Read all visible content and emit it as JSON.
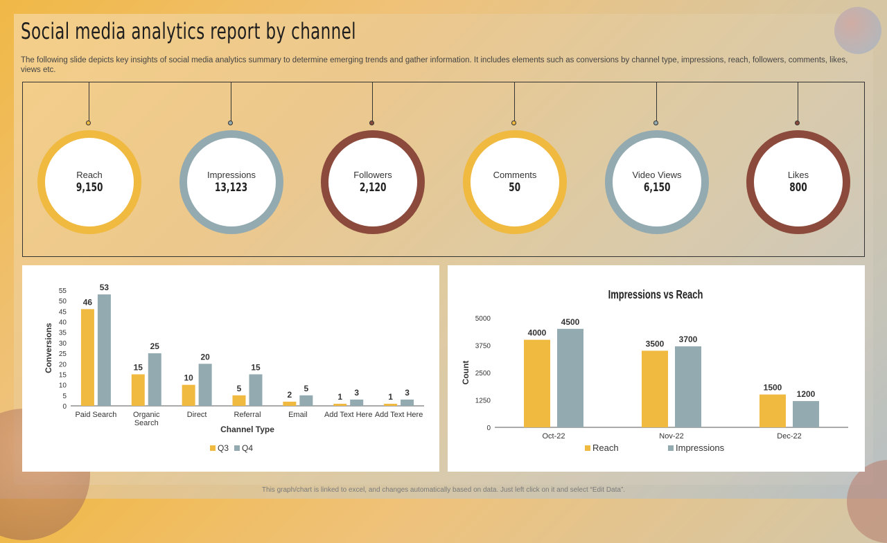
{
  "slide": {
    "title": "Social media analytics report by channel",
    "subtitle": "The following slide depicts key insights of social media analytics summary to determine emerging trends and gather information. It includes elements such as conversions by channel type,  impressions, reach, followers, comments, likes, views etc.",
    "footer": "This graph/chart is linked to excel, and changes automatically based on data. Just left click on it and select “Edit Data”."
  },
  "kpis": [
    {
      "label": "Reach",
      "value": "9,150",
      "color": "#f0b940"
    },
    {
      "label": "Impressions",
      "value": "13,123",
      "color": "#93aab0"
    },
    {
      "label": "Followers",
      "value": "2,120",
      "color": "#8b4a3c"
    },
    {
      "label": "Comments",
      "value": "50",
      "color": "#f0b940"
    },
    {
      "label": "Video Views",
      "value": "6,150",
      "color": "#93aab0"
    },
    {
      "label": "Likes",
      "value": "800",
      "color": "#8b4a3c"
    }
  ],
  "colors": {
    "gold": "#f0b940",
    "steel": "#93aab0",
    "brown": "#8b4a3c"
  },
  "chart_data": [
    {
      "type": "bar",
      "title": "",
      "xlabel": "Channel Type",
      "ylabel": "Conversions",
      "categories": [
        [
          "Paid Search"
        ],
        [
          "Organic",
          "Search"
        ],
        [
          "Direct"
        ],
        [
          "Referral"
        ],
        [
          "Email"
        ],
        [
          "Add Text Here"
        ],
        [
          "Add Text Here"
        ]
      ],
      "series": [
        {
          "name": "Q3",
          "values": [
            46,
            15,
            10,
            5,
            2,
            1,
            1
          ],
          "color": "#f0b940"
        },
        {
          "name": "Q4",
          "values": [
            53,
            25,
            20,
            15,
            5,
            3,
            3
          ],
          "color": "#93aab0"
        }
      ],
      "ylim": [
        0,
        55
      ],
      "yticks": [
        0,
        5,
        10,
        15,
        20,
        25,
        30,
        35,
        40,
        45,
        50,
        55
      ],
      "legend": "bottom"
    },
    {
      "type": "bar",
      "title": "Impressions  vs Reach",
      "xlabel": "",
      "ylabel": "Count",
      "categories": [
        [
          "Oct-22"
        ],
        [
          "Nov-22"
        ],
        [
          "Dec-22"
        ]
      ],
      "series": [
        {
          "name": "Reach",
          "values": [
            4000,
            3500,
            1500
          ],
          "color": "#f0b940"
        },
        {
          "name": "Impressions",
          "values": [
            4500,
            3700,
            1200
          ],
          "color": "#93aab0"
        }
      ],
      "ylim": [
        0,
        5000
      ],
      "yticks": [
        0,
        1250,
        2500,
        3750,
        5000
      ],
      "legend": "bottom"
    }
  ]
}
